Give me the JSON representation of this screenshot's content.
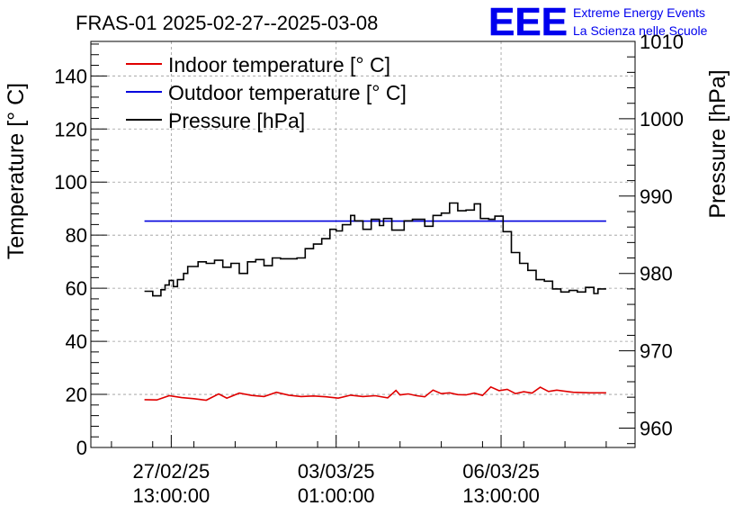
{
  "chart_data": {
    "type": "line",
    "title": "FRAS-01 2025-02-27--2025-03-08",
    "ylabel": "Temperature [° C]",
    "y2label": "Pressure [hPa]",
    "ylim": [
      0,
      153
    ],
    "y2lim": [
      957.5,
      1010
    ],
    "yticks": [
      "0",
      "20",
      "40",
      "60",
      "80",
      "100",
      "120",
      "140"
    ],
    "y2ticks": [
      "960",
      "970",
      "980",
      "990",
      "1000",
      "1010"
    ],
    "xticks": [
      {
        "line1": "27/02/25",
        "line2": "13:00:00",
        "x": 0.65
      },
      {
        "line1": "03/03/25",
        "line2": "01:00:00",
        "x": 4.65
      },
      {
        "line1": "06/03/25",
        "line2": "13:00:00",
        "x": 8.65
      }
    ],
    "xlim": [
      -1.3,
      11.9
    ],
    "grid": true,
    "legend": "top-left",
    "series": [
      {
        "name": "Indoor temperature [° C]",
        "color": "#e00000",
        "axis": "left",
        "x": [
          0,
          0.3,
          0.6,
          0.9,
          1.2,
          1.5,
          1.8,
          2.0,
          2.3,
          2.6,
          2.9,
          3.2,
          3.5,
          3.8,
          4.1,
          4.4,
          4.7,
          5.0,
          5.3,
          5.6,
          5.9,
          6.1,
          6.2,
          6.4,
          6.6,
          6.8,
          7.0,
          7.2,
          7.4,
          7.6,
          7.8,
          8.0,
          8.2,
          8.4,
          8.6,
          8.8,
          9.0,
          9.2,
          9.4,
          9.6,
          9.8,
          10.0,
          10.4,
          10.8,
          11.2
        ],
        "values": [
          18.0,
          17.9,
          19.5,
          18.8,
          18.4,
          17.8,
          20.2,
          18.6,
          20.5,
          19.6,
          19.2,
          20.8,
          19.7,
          19.2,
          19.4,
          19.1,
          18.6,
          19.7,
          19.2,
          19.5,
          18.7,
          21.5,
          19.8,
          20.2,
          19.5,
          19.1,
          21.6,
          20.3,
          20.6,
          19.9,
          19.8,
          20.5,
          19.6,
          22.8,
          21.4,
          21.9,
          20.3,
          21.0,
          20.5,
          22.7,
          21.1,
          21.6,
          20.8,
          20.6,
          20.6
        ]
      },
      {
        "name": "Outdoor temperature [° C]",
        "color": "#0000dd",
        "axis": "left",
        "x": [
          0,
          11.2
        ],
        "values": [
          85.3,
          85.3
        ]
      },
      {
        "name": "Pressure [hPa]",
        "color": "#000000",
        "axis": "right",
        "x": [
          0,
          0.2,
          0.4,
          0.5,
          0.6,
          0.7,
          0.8,
          0.95,
          1.05,
          1.3,
          1.5,
          1.7,
          1.9,
          2.1,
          2.3,
          2.5,
          2.7,
          2.9,
          3.1,
          3.3,
          3.7,
          3.9,
          4.1,
          4.3,
          4.5,
          4.65,
          4.8,
          5.0,
          5.1,
          5.3,
          5.5,
          5.7,
          5.8,
          6.0,
          6.3,
          6.5,
          6.8,
          7.0,
          7.2,
          7.4,
          7.6,
          7.8,
          8.0,
          8.15,
          8.35,
          8.5,
          8.7,
          8.9,
          9.1,
          9.3,
          9.5,
          9.7,
          9.9,
          10.1,
          10.3,
          10.5,
          10.7,
          10.9,
          11.0,
          11.2
        ],
        "values": [
          977.7,
          977.1,
          977.9,
          978.5,
          979.1,
          978.3,
          979.2,
          980.0,
          980.9,
          981.5,
          981.3,
          981.7,
          980.8,
          981.3,
          980.0,
          981.5,
          981.8,
          981.0,
          982.0,
          981.9,
          982.0,
          983.2,
          983.8,
          984.5,
          985.7,
          985.5,
          986.3,
          987.5,
          986.8,
          985.7,
          987.0,
          986.2,
          987.1,
          985.6,
          986.8,
          987.0,
          986.1,
          987.5,
          987.8,
          989.1,
          988.1,
          988.2,
          989.0,
          987.1,
          987.0,
          987.4,
          985.4,
          982.7,
          981.3,
          980.4,
          979.2,
          979.0,
          978.0,
          977.6,
          977.8,
          977.6,
          978.2,
          977.4,
          978.0,
          978.0
        ]
      }
    ]
  },
  "logo": {
    "mark": "EEE",
    "line1": "Extreme Energy Events",
    "line2": "La Scienza nelle Scuole",
    "color": "#0000ee"
  }
}
